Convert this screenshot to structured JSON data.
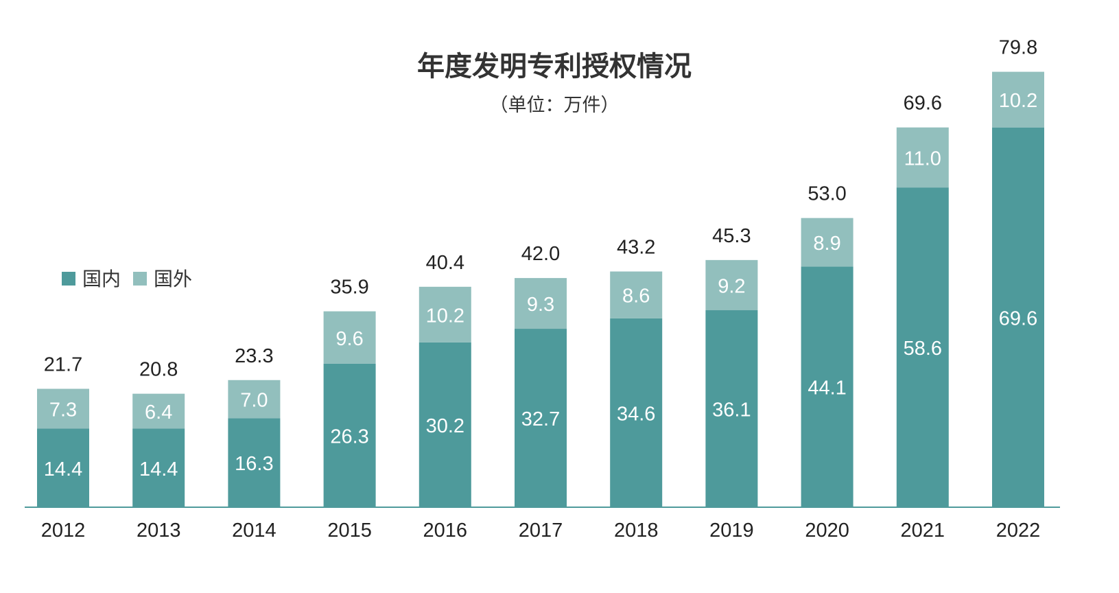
{
  "chart_data": {
    "type": "bar",
    "stacked": true,
    "title": "年度发明专利授权情况",
    "subtitle": "（单位：万件）",
    "categories": [
      "2012",
      "2013",
      "2014",
      "2015",
      "2016",
      "2017",
      "2018",
      "2019",
      "2020",
      "2021",
      "2022"
    ],
    "series": [
      {
        "name": "国内",
        "color": "#4e9a9b",
        "values": [
          14.4,
          14.4,
          16.3,
          26.3,
          30.2,
          32.7,
          34.6,
          36.1,
          44.1,
          58.6,
          69.6
        ]
      },
      {
        "name": "国外",
        "color": "#92bfbd",
        "values": [
          7.3,
          6.4,
          7.0,
          9.6,
          10.2,
          9.3,
          8.6,
          9.2,
          8.9,
          11.0,
          10.2
        ]
      }
    ],
    "totals": [
      "21.7",
      "20.8",
      "23.3",
      "35.9",
      "40.4",
      "42.0",
      "43.2",
      "45.3",
      "53.0",
      "69.6",
      "79.8"
    ],
    "segment_labels": [
      [
        "14.4",
        "14.4",
        "16.3",
        "26.3",
        "30.2",
        "32.7",
        "34.6",
        "36.1",
        "44.1",
        "58.6",
        "69.6"
      ],
      [
        "7.3",
        "6.4",
        "7.0",
        "9.6",
        "10.2",
        "9.3",
        "8.6",
        "9.2",
        "8.9",
        "11.0",
        "10.2"
      ]
    ],
    "legend_position": "left",
    "grid": false,
    "axis_color": "#4e9a9b"
  }
}
